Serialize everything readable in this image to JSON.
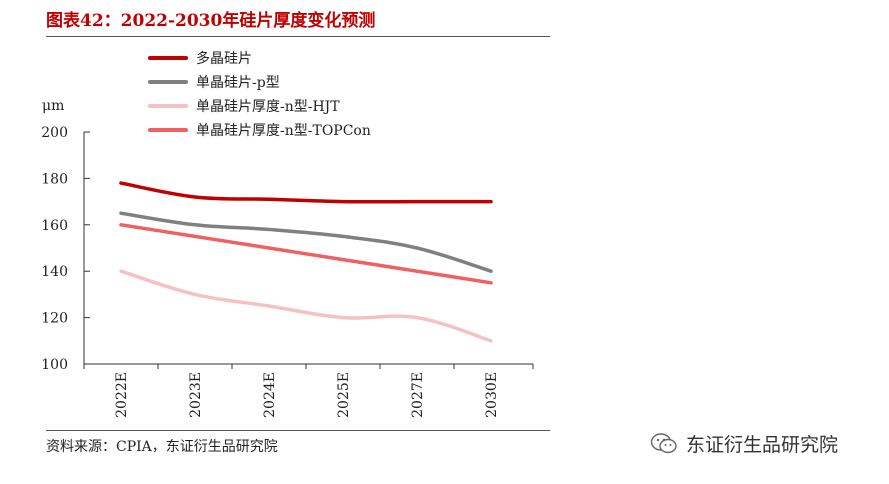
{
  "header": {
    "title": "图表42：2022-2030年硅片厚度变化预测"
  },
  "footer": {
    "source": "资料来源：CPIA，东证衍生品研究院"
  },
  "watermark": {
    "text": "东证衍生品研究院",
    "icon": "wechat-icon"
  },
  "chart_data": {
    "type": "line",
    "unit_label": "μm",
    "categories": [
      "2022E",
      "2023E",
      "2024E",
      "2025E",
      "2027E",
      "2030E"
    ],
    "ylim": [
      100,
      200
    ],
    "yticks": [
      100,
      120,
      140,
      160,
      180,
      200
    ],
    "grid": false,
    "legend_position": "top",
    "series": [
      {
        "name": "多晶硅片",
        "color": "#c00000",
        "values": [
          178,
          172,
          171,
          170,
          170,
          170
        ]
      },
      {
        "name": "单晶硅片-p型",
        "color": "#808080",
        "values": [
          165,
          160,
          158,
          155,
          150,
          140
        ]
      },
      {
        "name": "单晶硅片厚度-n型-HJT",
        "color": "#f4c2c2",
        "values": [
          140,
          130,
          125,
          120,
          120,
          110
        ]
      },
      {
        "name": "单晶硅片厚度-n型-TOPCon",
        "color": "#f06060",
        "values": [
          160,
          155,
          150,
          145,
          140,
          135
        ]
      }
    ]
  }
}
